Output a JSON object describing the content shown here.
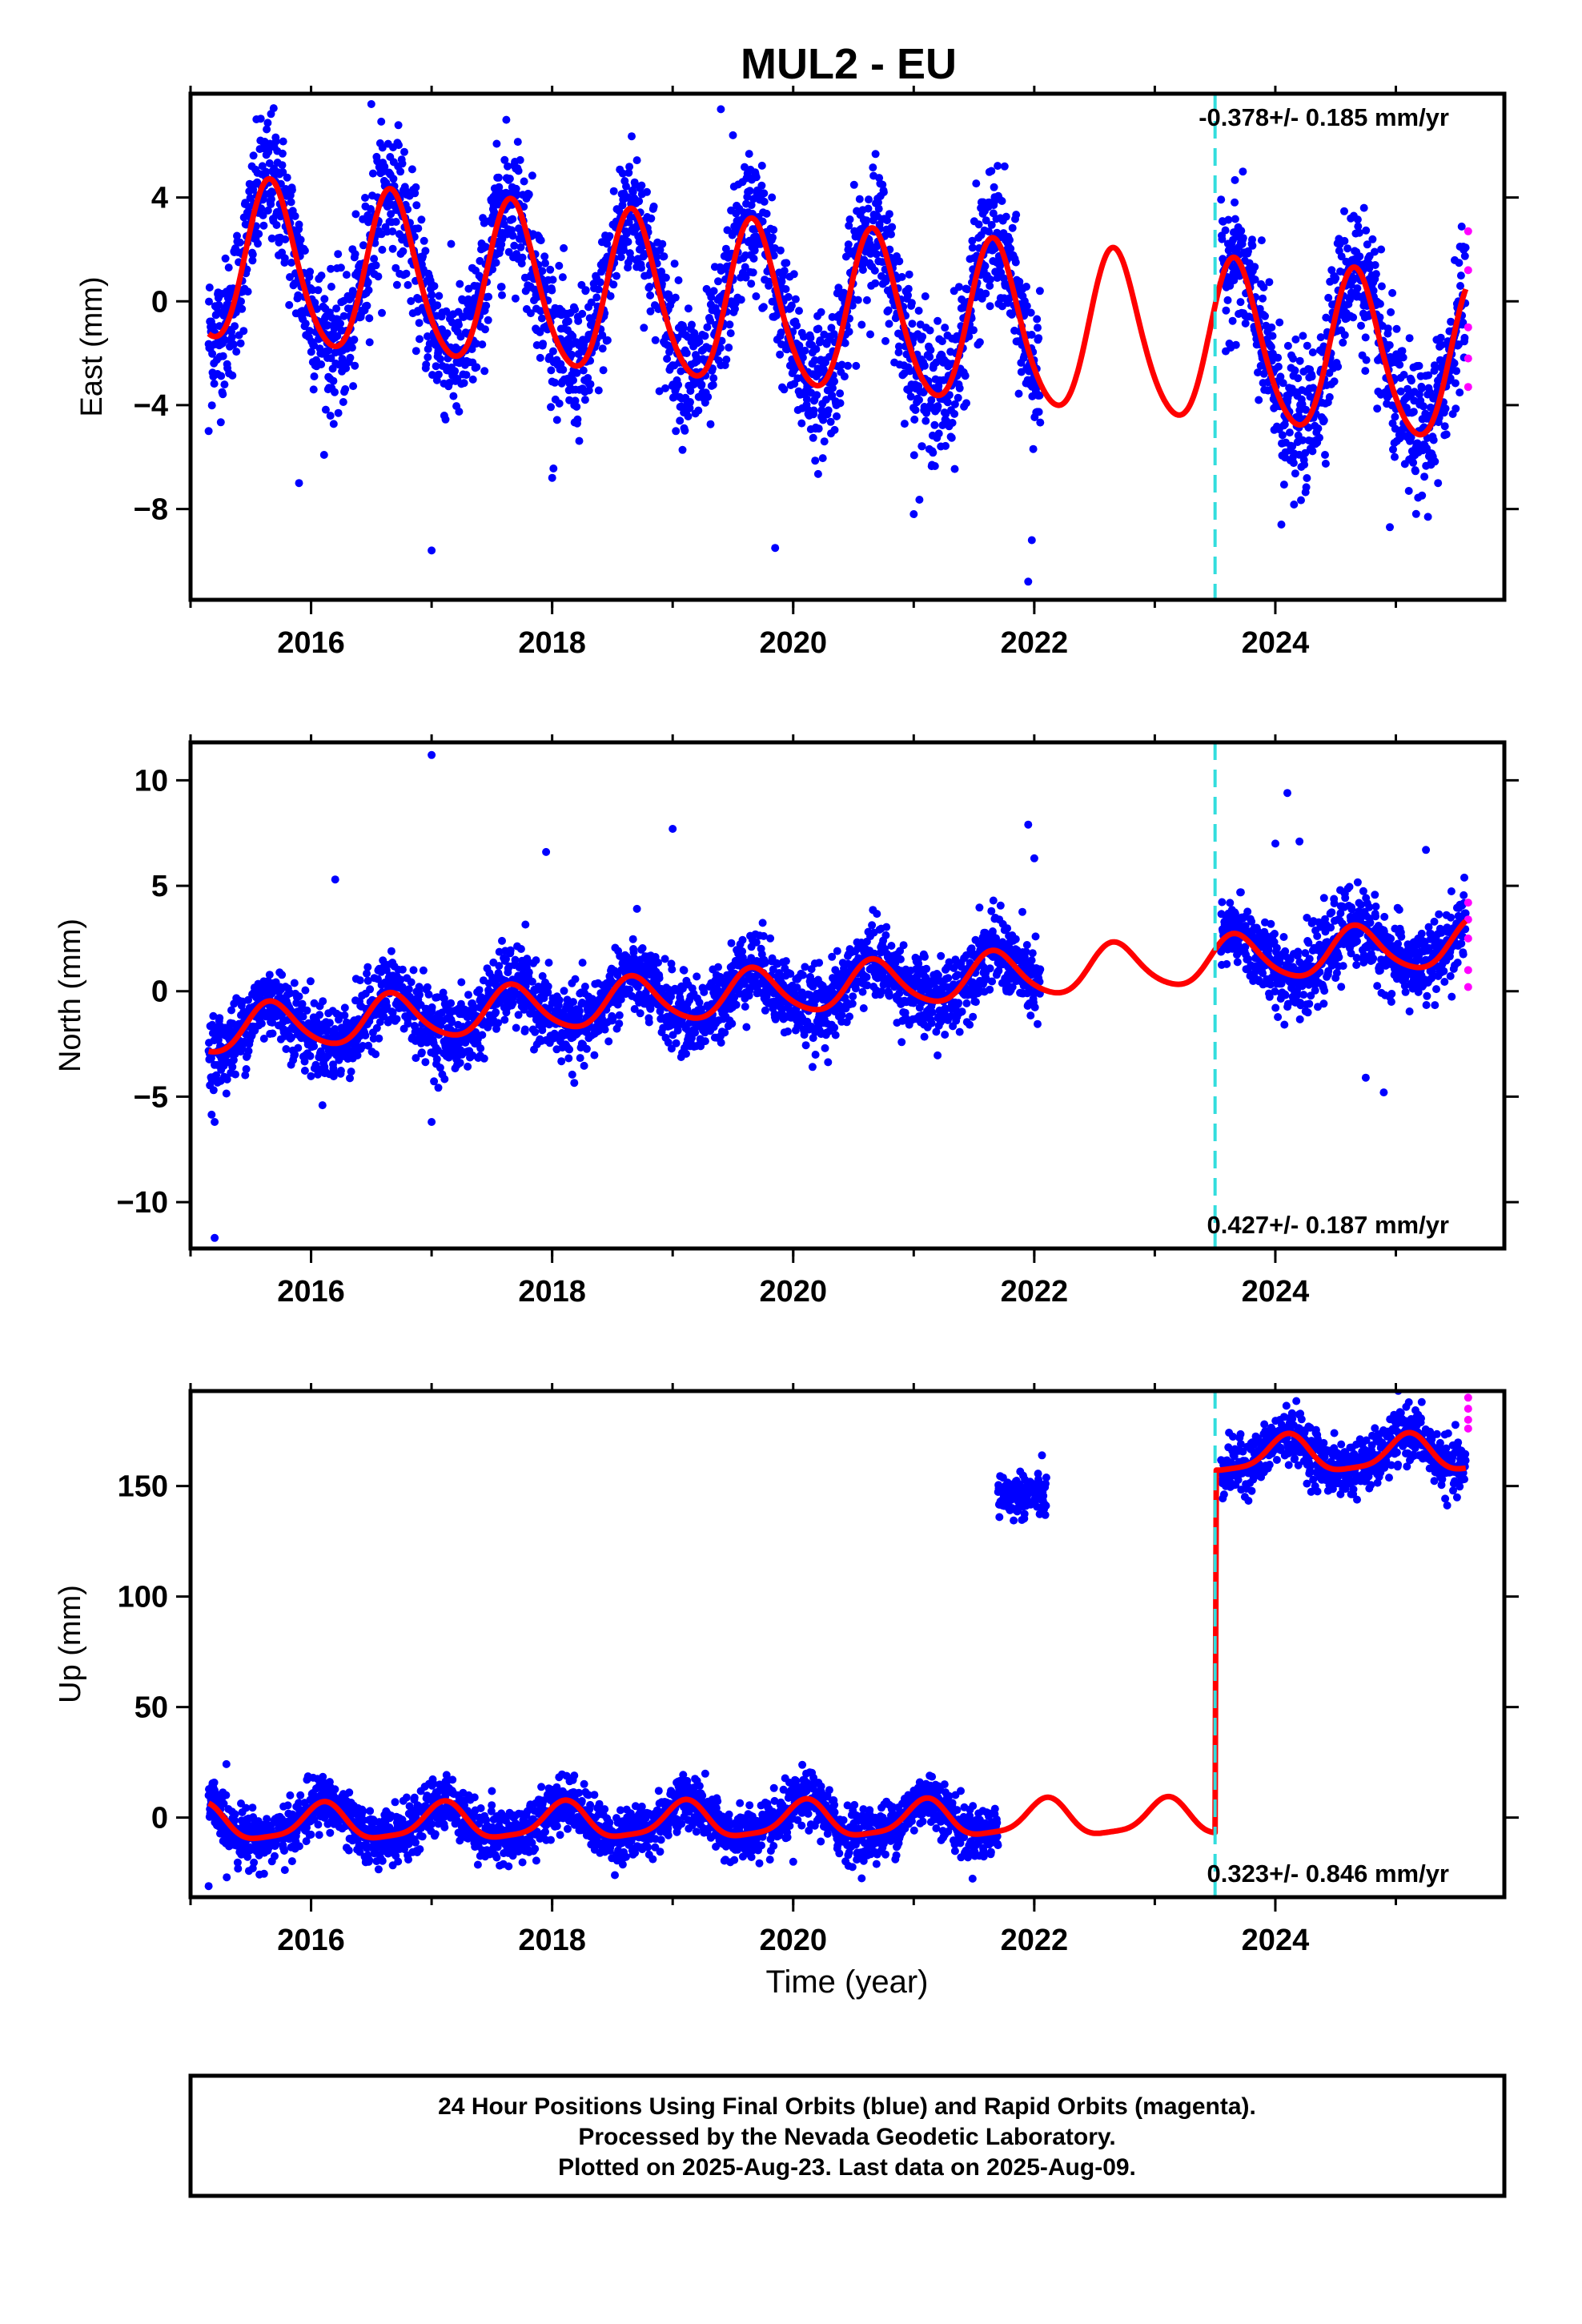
{
  "title": "MUL2 - EU",
  "colors": {
    "final_orbits": "#0000ff",
    "rapid_orbits": "#ff00ff",
    "model": "#ff0000",
    "event_line": "#33dddd"
  },
  "caption": {
    "line1": "24 Hour Positions Using Final Orbits (blue) and Rapid Orbits (magenta).",
    "line2": "Processed by the Nevada Geodetic Laboratory.",
    "line3": "Plotted on 2025-Aug-23. Last data on 2025-Aug-09."
  },
  "chart_data": [
    {
      "type": "scatter",
      "component": "east",
      "ylabel": "East (mm)",
      "xlabel": "",
      "rate_label": "-0.378+/- 0.185 mm/yr",
      "xlim": [
        2015.0,
        2025.9
      ],
      "ylim": [
        -11.5,
        8.0
      ],
      "x_ticks": [
        2016,
        2018,
        2020,
        2022,
        2024
      ],
      "x_tick_labels": [
        "2016",
        "2018",
        "2020",
        "2022",
        "2024"
      ],
      "y_ticks": [
        4,
        0,
        -4,
        -8
      ],
      "y_tick_labels": [
        "4",
        "0",
        "−4",
        "−8"
      ],
      "event_line_x": 2023.5,
      "segments": [
        [
          2015.15,
          2022.05
        ],
        [
          2023.55,
          2025.58
        ]
      ],
      "model": {
        "offset": 1.5,
        "rate": -0.378,
        "amplitude": 3.1,
        "phase_year": 0.42,
        "semiannual": 0.35
      },
      "scatter_sigma": 1.3,
      "outliers": [
        [
          2015.15,
          -5.0
        ],
        [
          2015.9,
          -7.0
        ],
        [
          2016.5,
          7.6
        ],
        [
          2017.0,
          -9.6
        ],
        [
          2018.0,
          -6.8
        ],
        [
          2019.4,
          7.4
        ],
        [
          2019.5,
          6.4
        ],
        [
          2019.85,
          -9.5
        ],
        [
          2021.0,
          -8.2
        ],
        [
          2021.95,
          -10.8
        ],
        [
          2021.98,
          -9.2
        ],
        [
          2023.7,
          1.8
        ],
        [
          2024.05,
          -8.6
        ],
        [
          2024.95,
          -8.7
        ],
        [
          2025.35,
          -7.0
        ]
      ],
      "rapid_points": [
        [
          2025.6,
          2.7
        ],
        [
          2025.6,
          1.2
        ],
        [
          2025.6,
          -1.0
        ],
        [
          2025.6,
          -2.2
        ],
        [
          2025.6,
          -3.3
        ]
      ]
    },
    {
      "type": "scatter",
      "component": "north",
      "ylabel": "North (mm)",
      "xlabel": "",
      "rate_label": "0.427+/- 0.187 mm/yr",
      "xlim": [
        2015.0,
        2025.9
      ],
      "ylim": [
        -12.2,
        11.8
      ],
      "x_ticks": [
        2016,
        2018,
        2020,
        2022,
        2024
      ],
      "x_tick_labels": [
        "2016",
        "2018",
        "2020",
        "2022",
        "2024"
      ],
      "y_ticks": [
        10,
        5,
        0,
        -5,
        -10
      ],
      "y_tick_labels": [
        "10",
        "5",
        "0",
        "−5",
        "−10"
      ],
      "event_line_x": 2023.5,
      "segments": [
        [
          2015.15,
          2022.05
        ],
        [
          2023.55,
          2025.58
        ]
      ],
      "model": {
        "offset": -1.9,
        "rate": 0.4,
        "amplitude": 1.1,
        "phase_year": 0.42,
        "semiannual": 0.15
      },
      "scatter_sigma": 0.9,
      "outliers": [
        [
          2015.2,
          -11.7
        ],
        [
          2015.2,
          -6.2
        ],
        [
          2016.2,
          5.3
        ],
        [
          2017.0,
          11.2
        ],
        [
          2017.0,
          -6.2
        ],
        [
          2017.95,
          6.6
        ],
        [
          2019.0,
          7.7
        ],
        [
          2021.95,
          7.9
        ],
        [
          2022.0,
          6.3
        ],
        [
          2024.1,
          9.4
        ],
        [
          2024.0,
          7.0
        ],
        [
          2024.2,
          7.1
        ],
        [
          2024.75,
          -4.1
        ],
        [
          2024.9,
          -4.8
        ],
        [
          2025.25,
          6.7
        ]
      ],
      "rapid_points": [
        [
          2025.6,
          4.2
        ],
        [
          2025.6,
          3.4
        ],
        [
          2025.6,
          2.5
        ],
        [
          2025.6,
          1.0
        ],
        [
          2025.6,
          0.2
        ]
      ]
    },
    {
      "type": "scatter",
      "component": "up",
      "ylabel": "Up (mm)",
      "xlabel": "Time (year)",
      "rate_label": "0.323+/- 0.846 mm/yr",
      "xlim": [
        2015.0,
        2025.9
      ],
      "ylim": [
        -36,
        193
      ],
      "x_ticks": [
        2016,
        2018,
        2020,
        2022,
        2024
      ],
      "x_tick_labels": [
        "2016",
        "2018",
        "2020",
        "2022",
        "2024"
      ],
      "y_ticks": [
        150,
        100,
        50,
        0
      ],
      "y_tick_labels": [
        "150",
        "100",
        "50",
        "0"
      ],
      "event_line_x": 2023.5,
      "segments": [
        [
          2015.15,
          2021.7
        ],
        [
          2023.55,
          2025.58
        ]
      ],
      "offset_jump": {
        "x": 2023.5,
        "before": 3,
        "after": 167
      },
      "cluster": {
        "x": [
          2021.7,
          2022.1
        ],
        "y_center": 146,
        "spread": 5
      },
      "model": {
        "offset": -3,
        "rate": 0.323,
        "amplitude": 8,
        "phase_year": 0.85,
        "semiannual": 2
      },
      "scatter_sigma": 6,
      "outliers": [
        [
          2015.15,
          -31
        ],
        [
          2015.3,
          -27
        ],
        [
          2017.5,
          12
        ],
        [
          2020.0,
          -20
        ]
      ],
      "rapid_points": [
        [
          2025.6,
          190
        ],
        [
          2025.6,
          185
        ],
        [
          2025.6,
          180
        ],
        [
          2025.6,
          176
        ]
      ]
    }
  ]
}
